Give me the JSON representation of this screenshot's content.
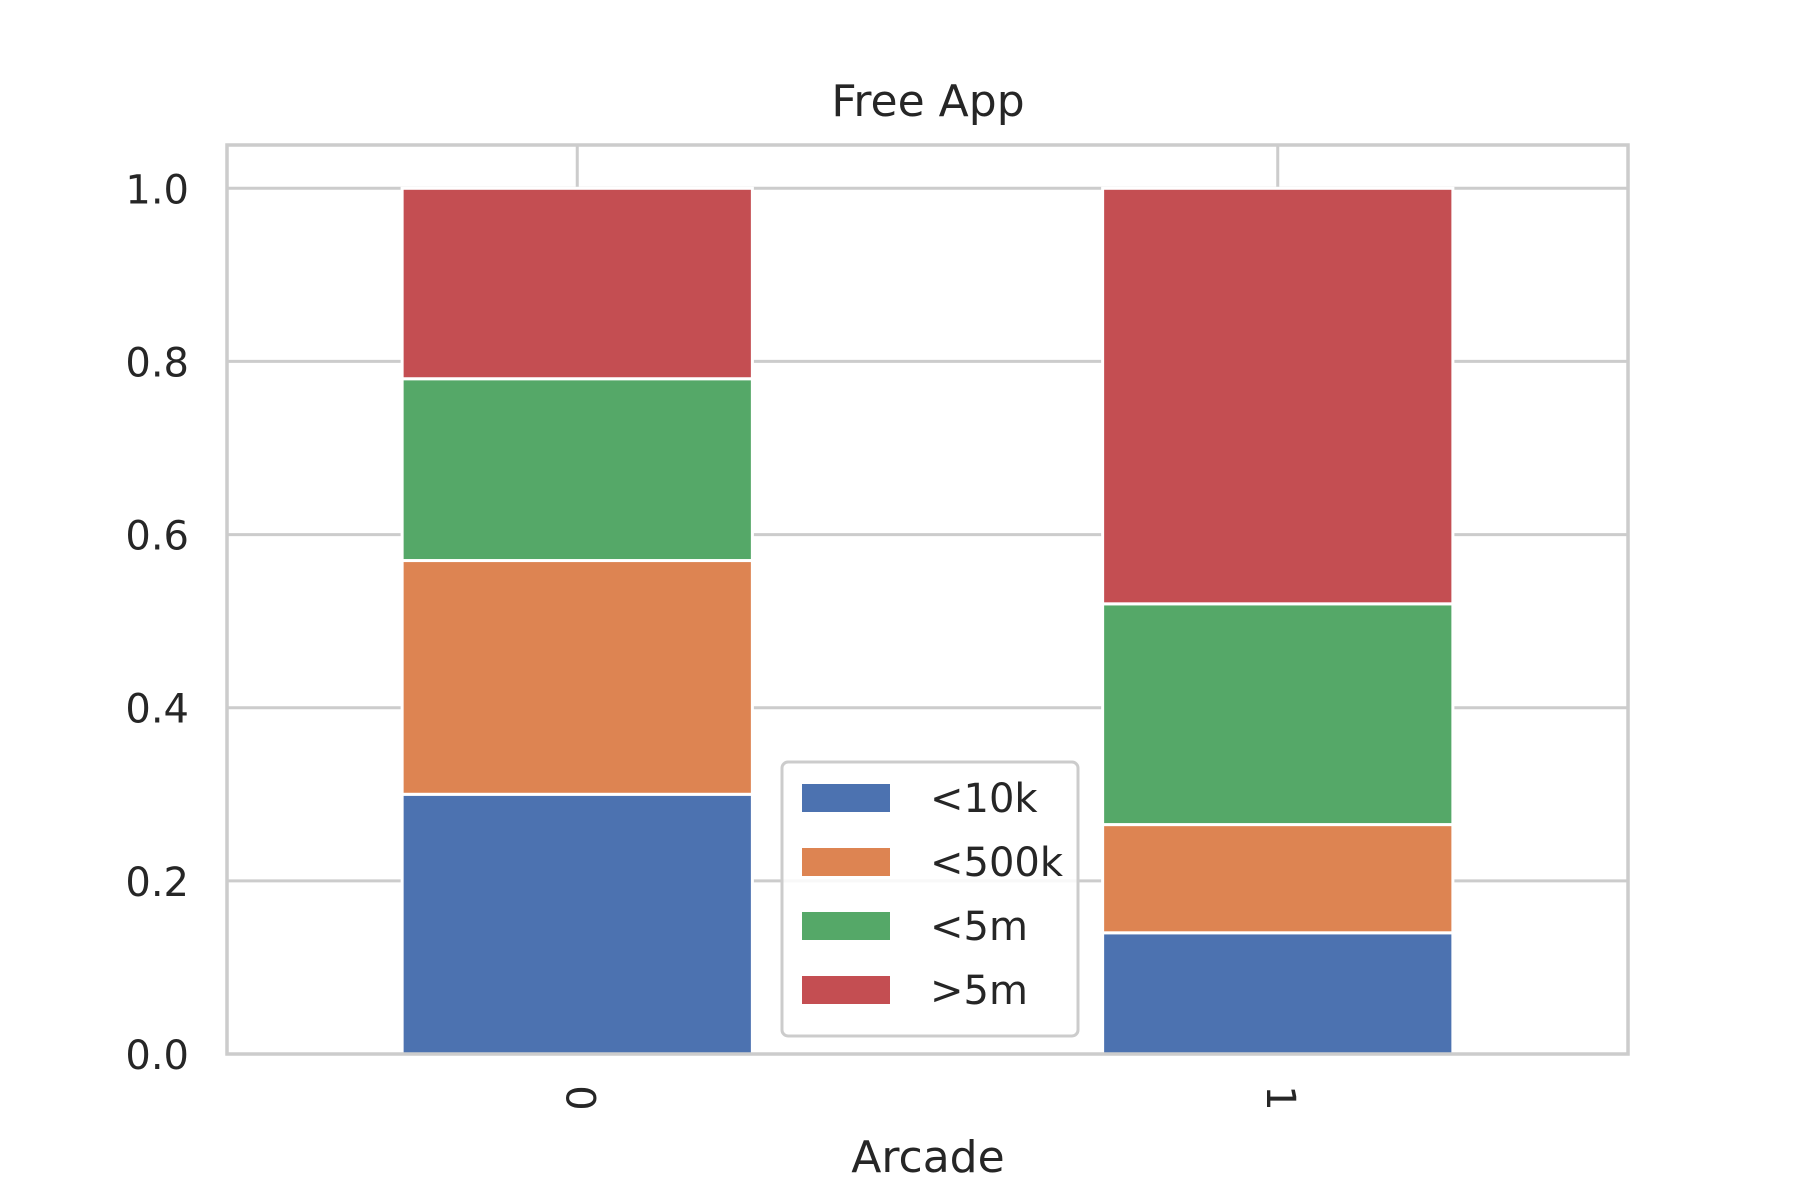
{
  "chart_data": {
    "type": "bar",
    "stacked": true,
    "title": "Free App",
    "xlabel": "Arcade",
    "ylabel": "",
    "categories": [
      "0",
      "1"
    ],
    "ylim": [
      0,
      1.05
    ],
    "yticks": [
      "0.0",
      "0.2",
      "0.4",
      "0.6",
      "0.8",
      "1.0"
    ],
    "grid": true,
    "legend_position": "lower-center",
    "series": [
      {
        "name": "<10k",
        "color": "#4c72b0",
        "values": [
          0.3,
          0.14
        ]
      },
      {
        "name": "<500k",
        "color": "#dd8452",
        "values": [
          0.27,
          0.125
        ]
      },
      {
        "name": "<5m",
        "color": "#55a868",
        "values": [
          0.21,
          0.255
        ]
      },
      {
        "name": ">5m",
        "color": "#c44e52",
        "values": [
          0.22,
          0.48
        ]
      }
    ]
  }
}
